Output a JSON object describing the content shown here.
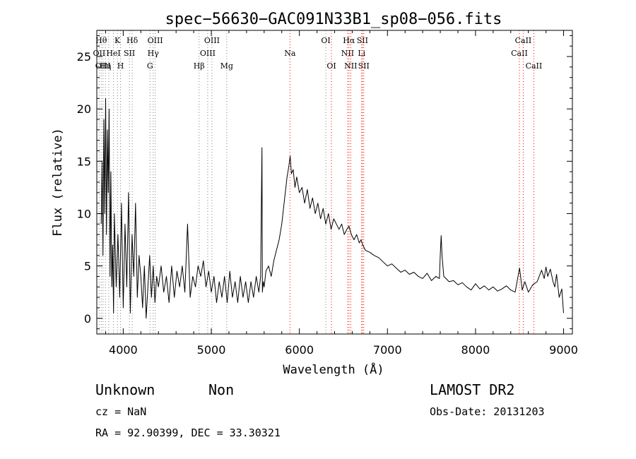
{
  "chart_data": {
    "type": "line",
    "title": "spec−56630−GAC091N33B1_sp08−056.fits",
    "xlabel": "Wavelength (Å)",
    "ylabel": "Flux (relative)",
    "xlim": [
      3700,
      9100
    ],
    "ylim": [
      -1.5,
      27.5
    ],
    "xticks": [
      4000,
      5000,
      6000,
      7000,
      8000,
      9000
    ],
    "yticks": [
      0,
      5,
      10,
      15,
      20,
      25
    ],
    "grid": false,
    "series": [
      {
        "x": [
          3750,
          3760,
          3770,
          3780,
          3790,
          3800,
          3810,
          3820,
          3830,
          3840,
          3850,
          3860,
          3870,
          3880,
          3890,
          3900,
          3920,
          3940,
          3960,
          3980,
          4000,
          4020,
          4040,
          4060,
          4080,
          4100,
          4120,
          4140,
          4160,
          4180,
          4200,
          4220,
          4240,
          4260,
          4280,
          4300,
          4320,
          4340,
          4360,
          4380,
          4400,
          4430,
          4460,
          4490,
          4520,
          4550,
          4580,
          4610,
          4640,
          4670,
          4700,
          4730,
          4760,
          4790,
          4820,
          4850,
          4880,
          4910,
          4940,
          4970,
          5000,
          5030,
          5060,
          5090,
          5120,
          5150,
          5180,
          5210,
          5240,
          5270,
          5300,
          5330,
          5360,
          5390,
          5420,
          5450,
          5480,
          5510,
          5540,
          5560,
          5575,
          5580,
          5590,
          5600,
          5620,
          5650,
          5680,
          5710,
          5740,
          5770,
          5800,
          5820,
          5840,
          5860,
          5880,
          5895,
          5910,
          5930,
          5950,
          5970,
          6000,
          6030,
          6060,
          6090,
          6120,
          6150,
          6180,
          6210,
          6240,
          6270,
          6300,
          6330,
          6360,
          6390,
          6420,
          6450,
          6480,
          6510,
          6540,
          6563,
          6590,
          6620,
          6650,
          6680,
          6700,
          6720,
          6750,
          6800,
          6850,
          6900,
          6950,
          7000,
          7050,
          7100,
          7150,
          7200,
          7250,
          7300,
          7350,
          7400,
          7450,
          7500,
          7550,
          7590,
          7600,
          7610,
          7620,
          7640,
          7700,
          7750,
          7800,
          7850,
          7900,
          7950,
          8000,
          8050,
          8100,
          8150,
          8200,
          8250,
          8300,
          8350,
          8400,
          8450,
          8500,
          8530,
          8560,
          8600,
          8650,
          8700,
          8750,
          8780,
          8800,
          8820,
          8850,
          8880,
          8900,
          8920,
          8950,
          8980,
          9000
        ],
        "y": [
          9,
          15,
          6,
          19,
          10,
          21,
          8,
          18,
          12,
          20,
          4,
          14,
          3,
          7,
          0.5,
          10,
          3,
          8,
          2,
          11,
          1,
          9,
          3,
          12,
          0.5,
          8,
          4,
          11,
          2,
          6,
          4,
          1,
          5,
          0,
          3,
          6,
          2,
          5,
          1.5,
          4,
          3,
          5,
          2.5,
          4,
          1.5,
          5,
          2,
          4.5,
          3,
          5,
          2.5,
          9,
          2,
          4,
          3,
          5,
          4,
          5.5,
          3,
          4.5,
          2.5,
          4,
          1.5,
          3.5,
          2,
          4,
          1.5,
          4.5,
          2,
          3.5,
          1.5,
          4,
          2,
          3.5,
          1.5,
          3.5,
          2,
          4,
          2.5,
          4,
          16.3,
          2.5,
          3.5,
          3,
          4.5,
          5,
          4,
          5.5,
          6.5,
          7.5,
          9,
          10.5,
          12,
          13.5,
          14.5,
          15.5,
          13.8,
          14.2,
          12.5,
          13.5,
          12,
          12.5,
          11,
          12.3,
          10.5,
          11.5,
          10,
          11,
          9.5,
          10.5,
          9,
          10,
          8.5,
          9.5,
          9,
          8.5,
          9,
          8,
          8.5,
          8.8,
          8,
          7.5,
          8,
          7.2,
          7.5,
          7,
          6.5,
          6.3,
          6,
          5.8,
          5.4,
          5,
          5.2,
          4.8,
          4.4,
          4.6,
          4.2,
          4.4,
          4.0,
          3.8,
          4.3,
          3.6,
          4.0,
          3.8,
          6.2,
          7.9,
          6.0,
          4.0,
          3.5,
          3.6,
          3.2,
          3.4,
          3.0,
          2.7,
          3.3,
          2.8,
          3.1,
          2.7,
          3.0,
          2.6,
          2.8,
          3.1,
          2.7,
          2.5,
          4.8,
          2.7,
          3.5,
          2.5,
          3.2,
          3.5,
          4.6,
          3.8,
          4.9,
          4.0,
          4.7,
          3.5,
          3.0,
          4.2,
          2.0,
          2.8,
          0.5
        ]
      }
    ],
    "line_marks": [
      {
        "wl": 3727,
        "label": "OII",
        "row": 1,
        "color": "#808080"
      },
      {
        "wl": 3750,
        "label": "Hθ",
        "row": 0,
        "color": "#808080"
      },
      {
        "wl": 3770,
        "label": "OIII",
        "row": 2,
        "color": "#808080"
      },
      {
        "wl": 3798,
        "label": "Hη",
        "row": 2,
        "color": "#808080"
      },
      {
        "wl": 3835,
        "label": "",
        "row": 1,
        "color": "#808080"
      },
      {
        "wl": 3889,
        "label": "HeI",
        "row": 1,
        "color": "#808080"
      },
      {
        "wl": 3934,
        "label": "K",
        "row": 0,
        "color": "#808080"
      },
      {
        "wl": 3969,
        "label": "H",
        "row": 2,
        "color": "#808080"
      },
      {
        "wl": 4070,
        "label": "SII",
        "row": 1,
        "color": "#808080"
      },
      {
        "wl": 4102,
        "label": "Hδ",
        "row": 0,
        "color": "#808080"
      },
      {
        "wl": 4304,
        "label": "G",
        "row": 2,
        "color": "#808080"
      },
      {
        "wl": 4340,
        "label": "Hγ",
        "row": 1,
        "color": "#808080"
      },
      {
        "wl": 4363,
        "label": "OIII",
        "row": 0,
        "color": "#808080"
      },
      {
        "wl": 4861,
        "label": "Hβ",
        "row": 2,
        "color": "#808080"
      },
      {
        "wl": 4959,
        "label": "OIII",
        "row": 1,
        "color": "#808080"
      },
      {
        "wl": 5007,
        "label": "OIII",
        "row": 0,
        "color": "#808080"
      },
      {
        "wl": 5175,
        "label": "Mg",
        "row": 2,
        "color": "#808080"
      },
      {
        "wl": 5893,
        "label": "Na",
        "row": 1,
        "color": "#ff0000"
      },
      {
        "wl": 6300,
        "label": "OI",
        "row": 0,
        "color": "#808080"
      },
      {
        "wl": 6364,
        "label": "OI",
        "row": 2,
        "color": "#ff0000"
      },
      {
        "wl": 6548,
        "label": "NII",
        "row": 1,
        "color": "#ff0000"
      },
      {
        "wl": 6563,
        "label": "Hα",
        "row": 0,
        "color": "#ff0000"
      },
      {
        "wl": 6583,
        "label": "NII",
        "row": 2,
        "color": "#ff0000"
      },
      {
        "wl": 6707,
        "label": "Li",
        "row": 1,
        "color": "#ff0000"
      },
      {
        "wl": 6716,
        "label": "SII",
        "row": 0,
        "color": "#ff0000"
      },
      {
        "wl": 6731,
        "label": "SII",
        "row": 2,
        "color": "#ff0000"
      },
      {
        "wl": 8498,
        "label": "CaII",
        "row": 1,
        "color": "#ff0000"
      },
      {
        "wl": 8542,
        "label": "CaII",
        "row": 0,
        "color": "#ff0000"
      },
      {
        "wl": 8662,
        "label": "CaII",
        "row": 2,
        "color": "#ff0000"
      }
    ]
  },
  "info": {
    "class": "Unknown",
    "subclass": "Non",
    "survey": "LAMOST DR2",
    "cz": "cz = NaN",
    "obs_date": "Obs-Date: 20131203",
    "radec": "RA =   92.90399, DEC =   33.30321"
  },
  "colors": {
    "spectrum": "#000000",
    "axis": "#000000",
    "mark_default": "#808080"
  }
}
